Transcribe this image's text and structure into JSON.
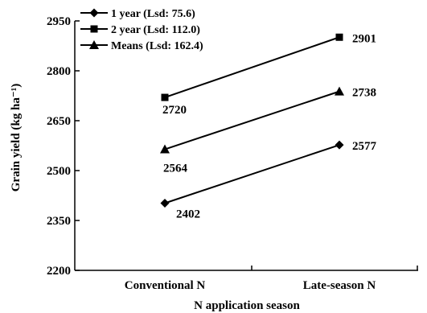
{
  "chart_data": {
    "type": "line",
    "categories": [
      "Conventional N",
      "Late-season N"
    ],
    "xlabel": "N application season",
    "ylabel": "Grain yield (kg ha⁻¹)",
    "ylim": [
      2200,
      2950
    ],
    "yticks": [
      2200,
      2350,
      2500,
      2650,
      2800,
      2950
    ],
    "grid": false,
    "legend_position": "top-left",
    "series": [
      {
        "name": "1 year (Lsd: 75.6)",
        "marker": "diamond",
        "values": [
          2402,
          2577
        ],
        "labels": [
          "2402",
          "2577"
        ]
      },
      {
        "name": "2 year (Lsd: 112.0)",
        "marker": "square",
        "values": [
          2720,
          2901
        ],
        "labels": [
          "2720",
          "2901"
        ]
      },
      {
        "name": "Means (Lsd: 162.4)",
        "marker": "triangle",
        "values": [
          2564,
          2738
        ],
        "labels": [
          "2564",
          "2738"
        ]
      }
    ]
  }
}
